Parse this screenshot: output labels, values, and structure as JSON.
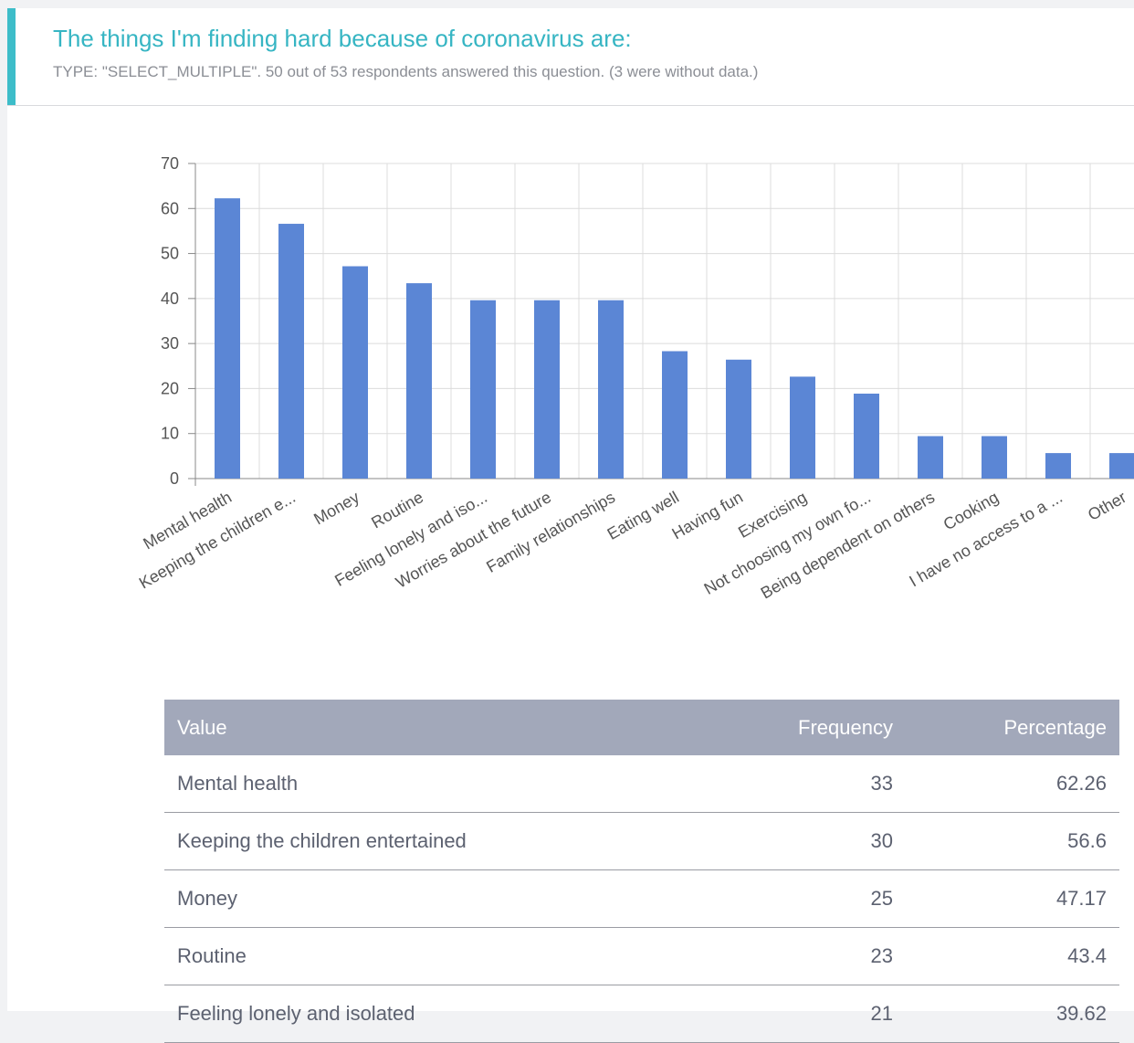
{
  "question": {
    "title": "The things I'm finding hard because of coronavirus are:",
    "meta": "TYPE: \"SELECT_MULTIPLE\". 50 out of 53 respondents answered this question. (3 were without data.)"
  },
  "colors": {
    "accent": "#3dbdc9",
    "title": "#36b5c3",
    "bar": "#5b86d5",
    "table_header": "#a2a8ba"
  },
  "chart_data": {
    "type": "bar",
    "title": "",
    "xlabel": "",
    "ylabel": "",
    "ylim": [
      0,
      70
    ],
    "yticks": [
      0,
      10,
      20,
      30,
      40,
      50,
      60,
      70
    ],
    "grid": true,
    "categories": [
      "Mental health",
      "Keeping the children e...",
      "Money",
      "Routine",
      "Feeling lonely and iso...",
      "Worries about the future",
      "Family relationships",
      "Eating well",
      "Having fun",
      "Exercising",
      "Not choosing my own fo...",
      "Being dependent on others",
      "Cooking",
      "I have no access to a ...",
      "Other"
    ],
    "values": [
      62.26,
      56.6,
      47.17,
      43.4,
      39.62,
      39.62,
      39.62,
      28.3,
      26.42,
      22.64,
      18.87,
      9.43,
      9.43,
      5.66,
      5.66
    ]
  },
  "table": {
    "headers": {
      "value": "Value",
      "frequency": "Frequency",
      "percentage": "Percentage"
    },
    "rows": [
      {
        "value": "Mental health",
        "frequency": "33",
        "percentage": "62.26"
      },
      {
        "value": "Keeping the children entertained",
        "frequency": "30",
        "percentage": "56.6"
      },
      {
        "value": "Money",
        "frequency": "25",
        "percentage": "47.17"
      },
      {
        "value": "Routine",
        "frequency": "23",
        "percentage": "43.4"
      },
      {
        "value": "Feeling lonely and isolated",
        "frequency": "21",
        "percentage": "39.62"
      }
    ]
  }
}
